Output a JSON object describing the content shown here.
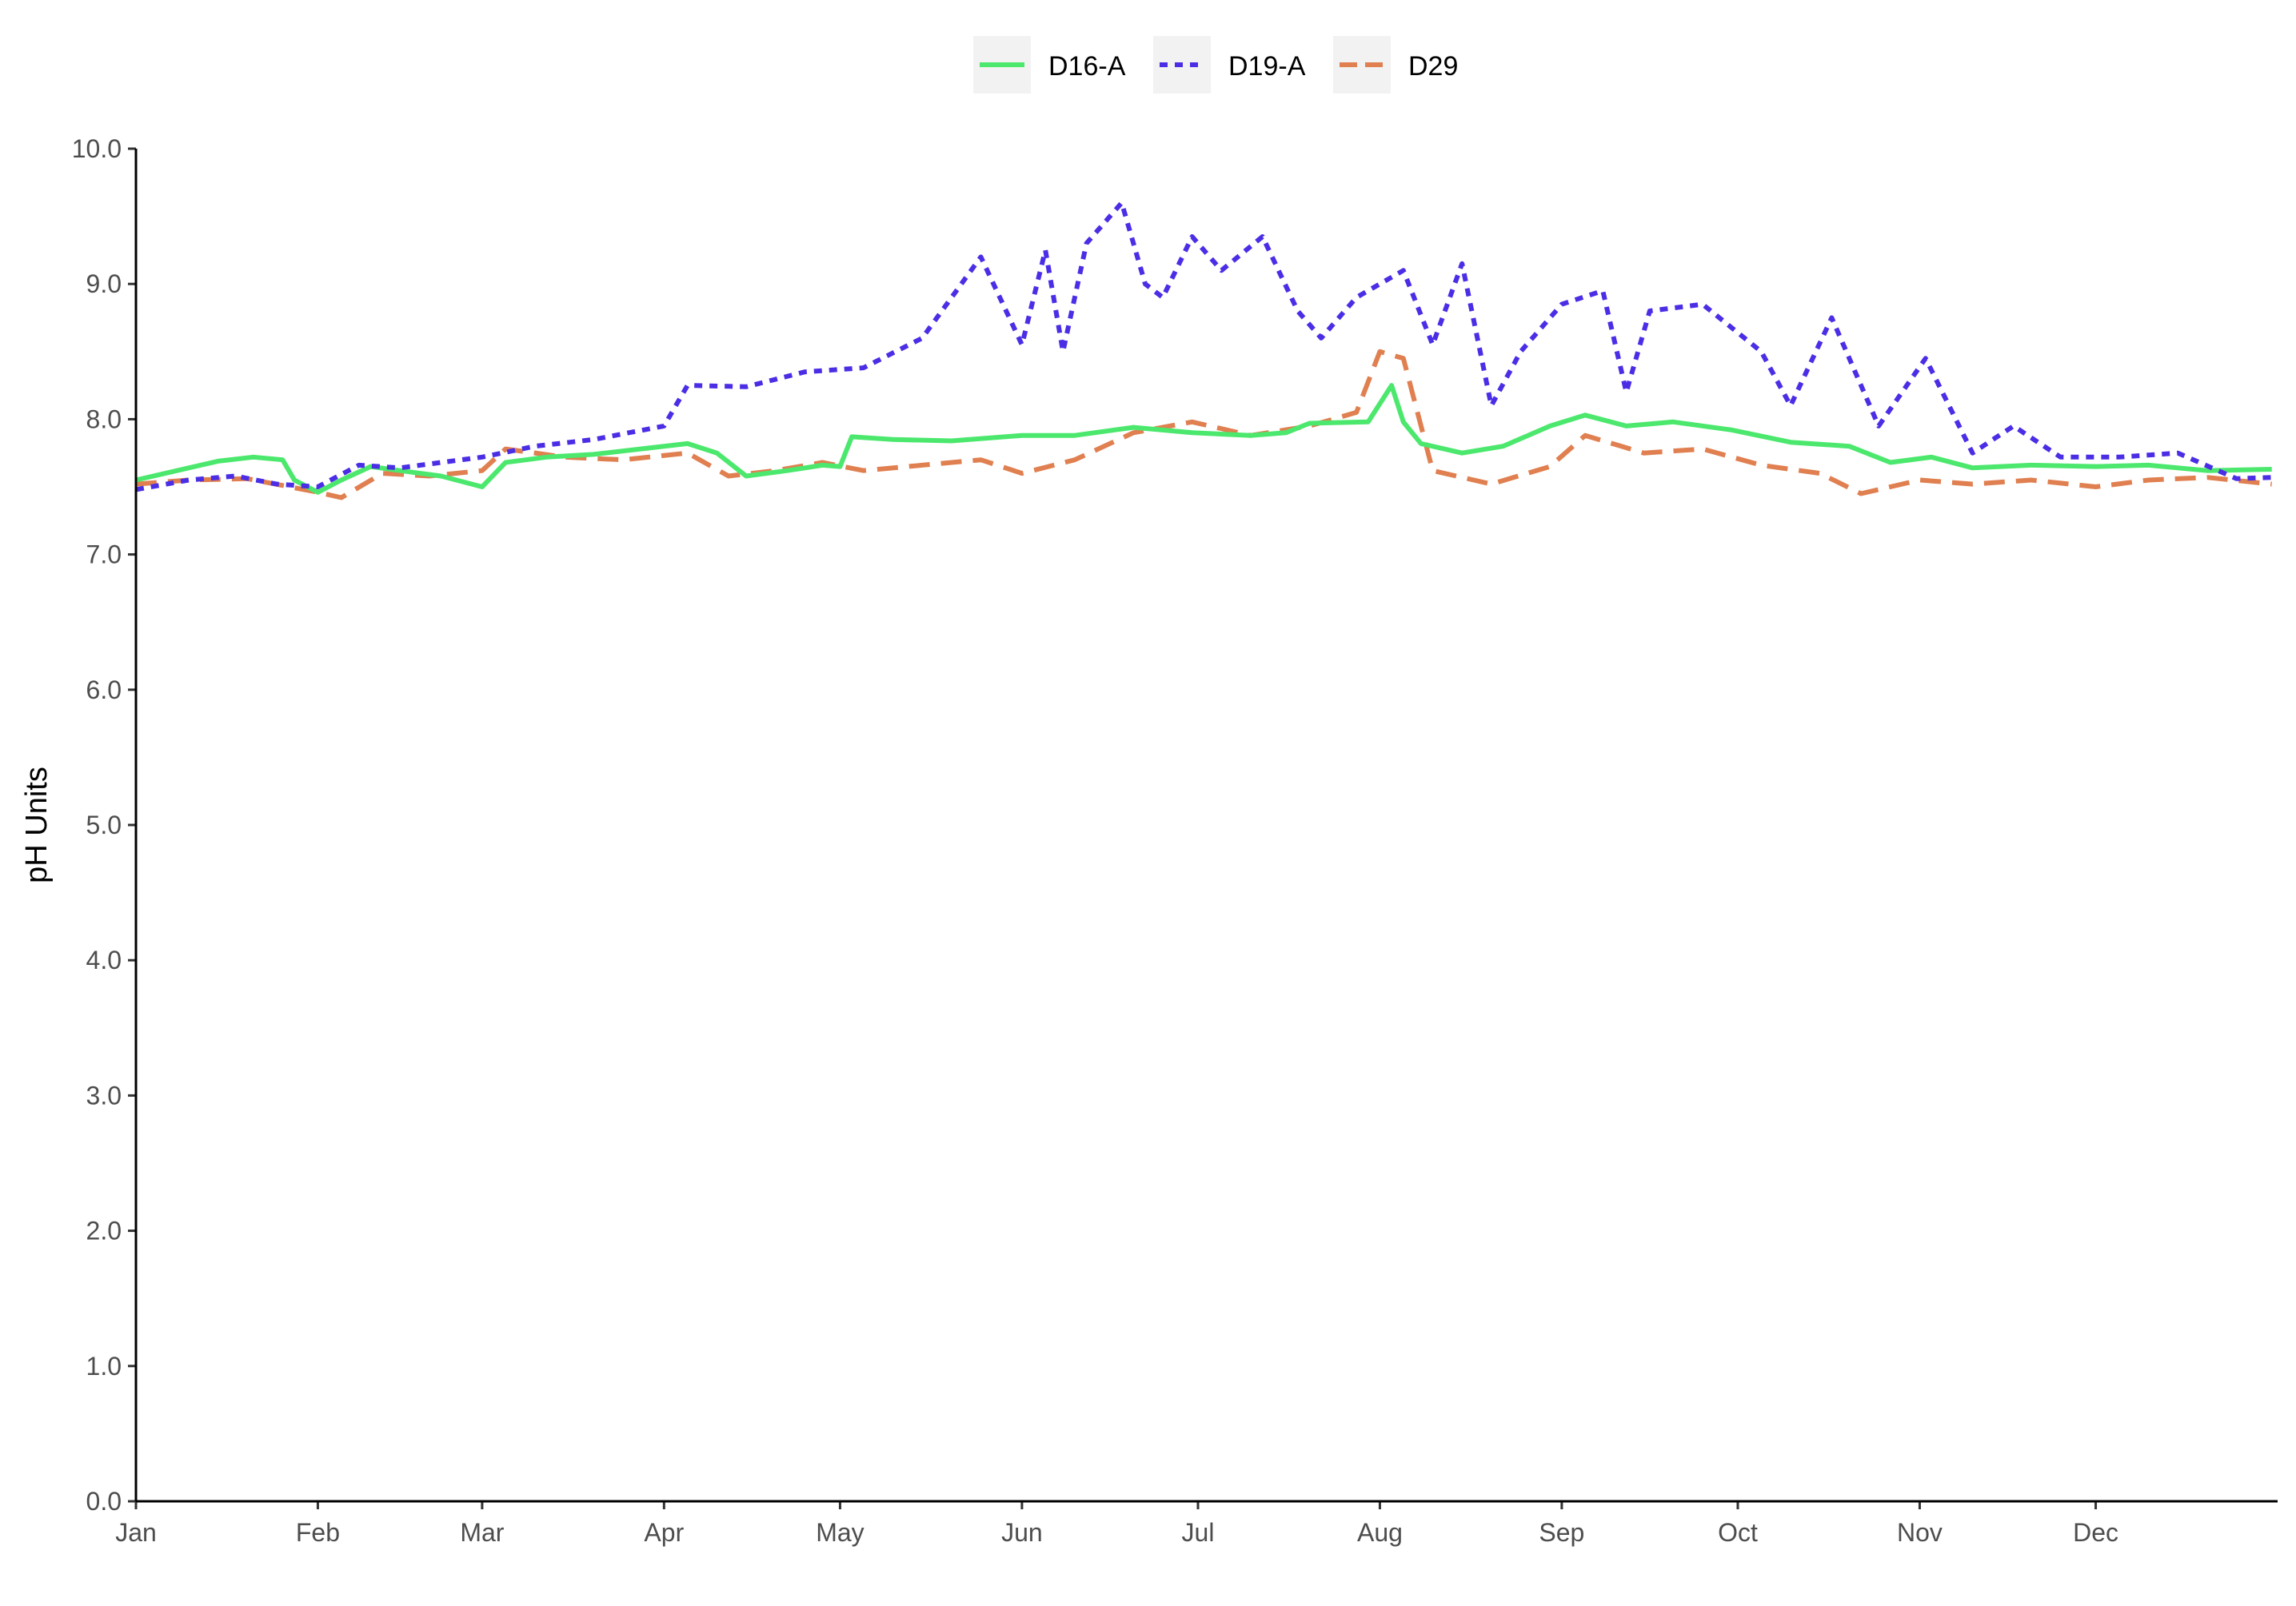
{
  "chart_data": {
    "type": "line",
    "title": "",
    "xlabel": "",
    "ylabel": "pH Units",
    "x_axis": {
      "type": "month-of-year",
      "tick_labels": [
        "Jan",
        "Feb",
        "Mar",
        "Apr",
        "May",
        "Jun",
        "Jul",
        "Aug",
        "Sep",
        "Oct",
        "Nov",
        "Dec"
      ]
    },
    "ylim": [
      0,
      10
    ],
    "y_ticks": [
      "0.0",
      "1.0",
      "2.0",
      "3.0",
      "4.0",
      "5.0",
      "6.0",
      "7.0",
      "8.0",
      "9.0",
      "10.0"
    ],
    "grid": false,
    "legend_position": "top",
    "colors": {
      "D16-A": "#4be86d",
      "D19-A": "#4a2ee6",
      "D29": "#e07f50"
    },
    "series": [
      {
        "name": "D16-A",
        "line_style": "solid",
        "points": [
          [
            "Jan 1",
            7.55
          ],
          [
            "Jan 8",
            7.62
          ],
          [
            "Jan 15",
            7.69
          ],
          [
            "Jan 21",
            7.72
          ],
          [
            "Jan 26",
            7.7
          ],
          [
            "Jan 28",
            7.55
          ],
          [
            "Feb 1",
            7.46
          ],
          [
            "Feb 5",
            7.55
          ],
          [
            "Feb 10",
            7.65
          ],
          [
            "Feb 15",
            7.62
          ],
          [
            "Feb 22",
            7.58
          ],
          [
            "Mar 1",
            7.5
          ],
          [
            "Mar 5",
            7.68
          ],
          [
            "Mar 12",
            7.72
          ],
          [
            "Mar 20",
            7.74
          ],
          [
            "Mar 28",
            7.78
          ],
          [
            "Apr 5",
            7.82
          ],
          [
            "Apr 10",
            7.75
          ],
          [
            "Apr 15",
            7.58
          ],
          [
            "Apr 22",
            7.62
          ],
          [
            "Apr 28",
            7.66
          ],
          [
            "May 1",
            7.65
          ],
          [
            "May 3",
            7.87
          ],
          [
            "May 10",
            7.85
          ],
          [
            "May 20",
            7.84
          ],
          [
            "Jun 1",
            7.88
          ],
          [
            "Jun 10",
            7.88
          ],
          [
            "Jun 20",
            7.94
          ],
          [
            "Jun 30",
            7.9
          ],
          [
            "Jul 10",
            7.88
          ],
          [
            "Jul 16",
            7.9
          ],
          [
            "Jul 20",
            7.97
          ],
          [
            "Jul 30",
            7.98
          ],
          [
            "Aug 3",
            8.25
          ],
          [
            "Aug 5",
            7.98
          ],
          [
            "Aug 8",
            7.82
          ],
          [
            "Aug 15",
            7.75
          ],
          [
            "Aug 22",
            7.8
          ],
          [
            "Aug 30",
            7.95
          ],
          [
            "Sep 5",
            8.03
          ],
          [
            "Sep 12",
            7.95
          ],
          [
            "Sep 20",
            7.98
          ],
          [
            "Sep 30",
            7.92
          ],
          [
            "Oct 10",
            7.83
          ],
          [
            "Oct 20",
            7.8
          ],
          [
            "Oct 27",
            7.68
          ],
          [
            "Nov 3",
            7.72
          ],
          [
            "Nov 10",
            7.64
          ],
          [
            "Nov 20",
            7.66
          ],
          [
            "Dec 1",
            7.65
          ],
          [
            "Dec 10",
            7.66
          ],
          [
            "Dec 20",
            7.62
          ],
          [
            "Dec 31",
            7.63
          ]
        ]
      },
      {
        "name": "D19-A",
        "line_style": "dotted",
        "points": [
          [
            "Jan 1",
            7.48
          ],
          [
            "Jan 10",
            7.55
          ],
          [
            "Jan 18",
            7.58
          ],
          [
            "Jan 25",
            7.52
          ],
          [
            "Feb 1",
            7.5
          ],
          [
            "Feb 8",
            7.66
          ],
          [
            "Feb 15",
            7.64
          ],
          [
            "Feb 22",
            7.68
          ],
          [
            "Mar 1",
            7.72
          ],
          [
            "Mar 10",
            7.8
          ],
          [
            "Mar 20",
            7.85
          ],
          [
            "Apr 1",
            7.95
          ],
          [
            "Apr 5",
            8.25
          ],
          [
            "Apr 15",
            8.24
          ],
          [
            "Apr 25",
            8.35
          ],
          [
            "May 5",
            8.38
          ],
          [
            "May 15",
            8.6
          ],
          [
            "May 25",
            9.2
          ],
          [
            "Jun 1",
            8.55
          ],
          [
            "Jun 5",
            9.25
          ],
          [
            "Jun 8",
            8.5
          ],
          [
            "Jun 12",
            9.3
          ],
          [
            "Jun 18",
            9.6
          ],
          [
            "Jun 22",
            9.0
          ],
          [
            "Jun 25",
            8.9
          ],
          [
            "Jun 30",
            9.35
          ],
          [
            "Jul 5",
            9.1
          ],
          [
            "Jul 12",
            9.35
          ],
          [
            "Jul 18",
            8.8
          ],
          [
            "Jul 22",
            8.6
          ],
          [
            "Jul 28",
            8.9
          ],
          [
            "Aug 5",
            9.1
          ],
          [
            "Aug 10",
            8.55
          ],
          [
            "Aug 15",
            9.15
          ],
          [
            "Aug 20",
            8.1
          ],
          [
            "Aug 25",
            8.5
          ],
          [
            "Sep 1",
            8.85
          ],
          [
            "Sep 8",
            8.95
          ],
          [
            "Sep 12",
            8.2
          ],
          [
            "Sep 16",
            8.8
          ],
          [
            "Sep 25",
            8.85
          ],
          [
            "Oct 5",
            8.5
          ],
          [
            "Oct 10",
            8.1
          ],
          [
            "Oct 17",
            8.75
          ],
          [
            "Oct 25",
            7.95
          ],
          [
            "Nov 2",
            8.45
          ],
          [
            "Nov 10",
            7.75
          ],
          [
            "Nov 17",
            7.95
          ],
          [
            "Nov 25",
            7.72
          ],
          [
            "Dec 5",
            7.72
          ],
          [
            "Dec 15",
            7.75
          ],
          [
            "Dec 25",
            7.56
          ],
          [
            "Dec 31",
            7.57
          ]
        ]
      },
      {
        "name": "D29",
        "line_style": "dashed",
        "points": [
          [
            "Jan 1",
            7.52
          ],
          [
            "Jan 10",
            7.55
          ],
          [
            "Jan 20",
            7.56
          ],
          [
            "Feb 1",
            7.46
          ],
          [
            "Feb 5",
            7.42
          ],
          [
            "Feb 12",
            7.6
          ],
          [
            "Feb 20",
            7.58
          ],
          [
            "Mar 1",
            7.62
          ],
          [
            "Mar 5",
            7.78
          ],
          [
            "Mar 15",
            7.72
          ],
          [
            "Mar 25",
            7.7
          ],
          [
            "Apr 5",
            7.75
          ],
          [
            "Apr 12",
            7.58
          ],
          [
            "Apr 20",
            7.62
          ],
          [
            "Apr 28",
            7.68
          ],
          [
            "May 5",
            7.62
          ],
          [
            "May 15",
            7.66
          ],
          [
            "May 25",
            7.7
          ],
          [
            "Jun 1",
            7.6
          ],
          [
            "Jun 10",
            7.7
          ],
          [
            "Jun 20",
            7.9
          ],
          [
            "Jun 30",
            7.98
          ],
          [
            "Jul 10",
            7.88
          ],
          [
            "Jul 20",
            7.95
          ],
          [
            "Jul 28",
            8.05
          ],
          [
            "Aug 1",
            8.5
          ],
          [
            "Aug 5",
            8.45
          ],
          [
            "Aug 10",
            7.62
          ],
          [
            "Aug 20",
            7.52
          ],
          [
            "Aug 30",
            7.65
          ],
          [
            "Sep 5",
            7.88
          ],
          [
            "Sep 15",
            7.75
          ],
          [
            "Sep 25",
            7.78
          ],
          [
            "Oct 5",
            7.66
          ],
          [
            "Oct 15",
            7.6
          ],
          [
            "Oct 22",
            7.45
          ],
          [
            "Nov 1",
            7.55
          ],
          [
            "Nov 10",
            7.52
          ],
          [
            "Nov 20",
            7.55
          ],
          [
            "Dec 1",
            7.5
          ],
          [
            "Dec 10",
            7.55
          ],
          [
            "Dec 20",
            7.57
          ],
          [
            "Dec 31",
            7.52
          ]
        ]
      }
    ]
  }
}
